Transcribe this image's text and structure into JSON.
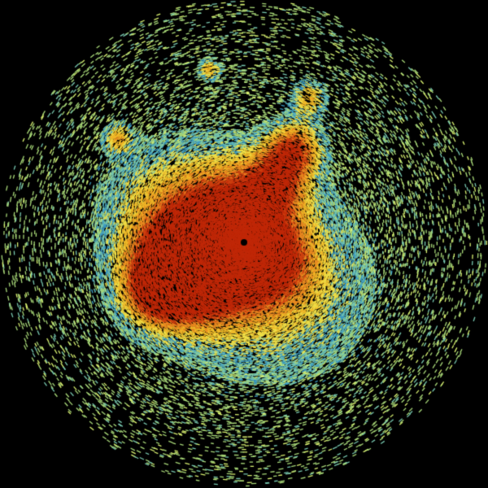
{
  "image": {
    "kind": "radar-reflectivity-scan",
    "background_color": "#000000",
    "palette": [
      "#a8d878",
      "#d8f070",
      "#3c9cc4",
      "#78c8b0",
      "#f0e048",
      "#f0b828",
      "#e88820",
      "#d04010",
      "#c02808"
    ],
    "features": [
      {
        "name": "central-core",
        "color": "#d03010"
      },
      {
        "name": "northeast-band",
        "color": "#e89020"
      },
      {
        "name": "outer-clutter",
        "color": "#c0e070"
      }
    ]
  }
}
